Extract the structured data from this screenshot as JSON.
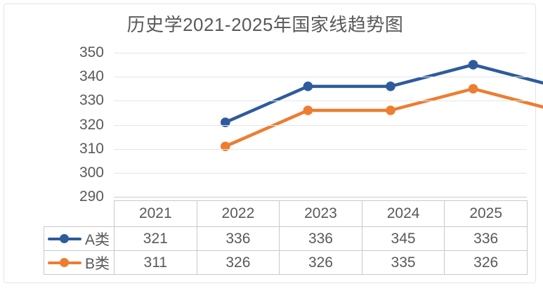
{
  "title": "历史学2021-2025年国家线趋势图",
  "chart_data": {
    "type": "line",
    "title": "历史学2021-2025年国家线趋势图",
    "categories": [
      "2021",
      "2022",
      "2023",
      "2024",
      "2025"
    ],
    "series": [
      {
        "name": "A类",
        "values": [
          321,
          336,
          336,
          345,
          336
        ],
        "color": "#2E5B9C",
        "marker": "circle"
      },
      {
        "name": "B类",
        "values": [
          311,
          326,
          326,
          335,
          326
        ],
        "color": "#ED7D31",
        "marker": "circle"
      }
    ],
    "ylim": [
      290,
      350
    ],
    "yticks": [
      350,
      340,
      330,
      320,
      310,
      300,
      290
    ],
    "grid": true,
    "legend_position": "data-table-left",
    "data_table": true
  },
  "colors": {
    "text": "#595959",
    "gridline": "#E6E6E6",
    "axis_line": "#C9C9C9",
    "table_border": "#C9C9C9",
    "series_a_blue": "#2E5B9C",
    "series_b_orange": "#ED7D31",
    "background": "#FFFFFF",
    "frame_border": "#E4E4E8"
  }
}
